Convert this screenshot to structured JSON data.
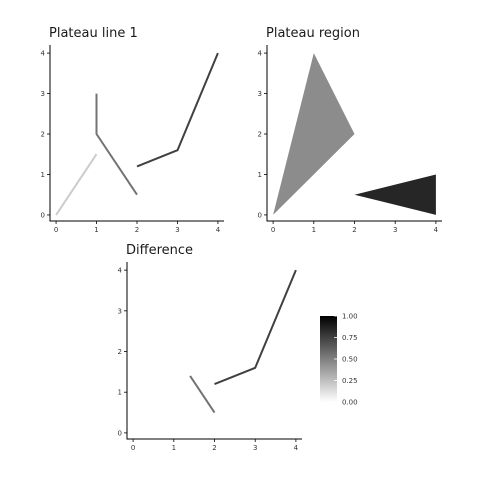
{
  "chart_data": [
    {
      "type": "line",
      "title": "Plateau line 1",
      "xticks": [
        "0",
        "1",
        "2",
        "3",
        "4"
      ],
      "yticks": [
        "0",
        "1",
        "2",
        "3",
        "4"
      ],
      "xlim": [
        -0.15,
        4.15
      ],
      "ylim": [
        -0.15,
        4.2
      ],
      "series": [
        {
          "points": [
            [
              0,
              0
            ],
            [
              1,
              1.5
            ]
          ],
          "level": 0.2
        },
        {
          "points": [
            [
              1,
              3
            ],
            [
              1,
              2
            ],
            [
              2,
              0.5
            ]
          ],
          "level": 0.55
        },
        {
          "points": [
            [
              2,
              1.2
            ],
            [
              3,
              1.6
            ],
            [
              4,
              4
            ]
          ],
          "level": 0.75
        }
      ]
    },
    {
      "type": "area",
      "title": "Plateau region",
      "xticks": [
        "0",
        "1",
        "2",
        "3",
        "4"
      ],
      "yticks": [
        "0",
        "1",
        "2",
        "3",
        "4"
      ],
      "xlim": [
        -0.15,
        4.15
      ],
      "ylim": [
        -0.15,
        4.2
      ],
      "series": [
        {
          "polygon": [
            [
              0,
              0
            ],
            [
              1,
              4
            ],
            [
              2,
              2
            ]
          ],
          "level": 0.45
        },
        {
          "polygon": [
            [
              2,
              0.5
            ],
            [
              4,
              1
            ],
            [
              4,
              0
            ]
          ],
          "level": 0.85
        }
      ]
    },
    {
      "type": "line",
      "title": "Difference",
      "xticks": [
        "0",
        "1",
        "2",
        "3",
        "4"
      ],
      "yticks": [
        "0",
        "1",
        "2",
        "3",
        "4"
      ],
      "xlim": [
        -0.15,
        4.15
      ],
      "ylim": [
        -0.15,
        4.2
      ],
      "series": [
        {
          "points": [
            [
              1.4,
              1.4
            ],
            [
              2,
              0.5
            ]
          ],
          "level": 0.55
        },
        {
          "points": [
            [
              2,
              1.2
            ],
            [
              3,
              1.6
            ],
            [
              4,
              4
            ]
          ],
          "level": 0.75
        }
      ]
    }
  ],
  "legend": {
    "min": 0,
    "max": 1,
    "labels": [
      "1.00",
      "0.75",
      "0.50",
      "0.25",
      "0.00"
    ],
    "low_color": "#ffffff",
    "high_color": "#000000"
  }
}
